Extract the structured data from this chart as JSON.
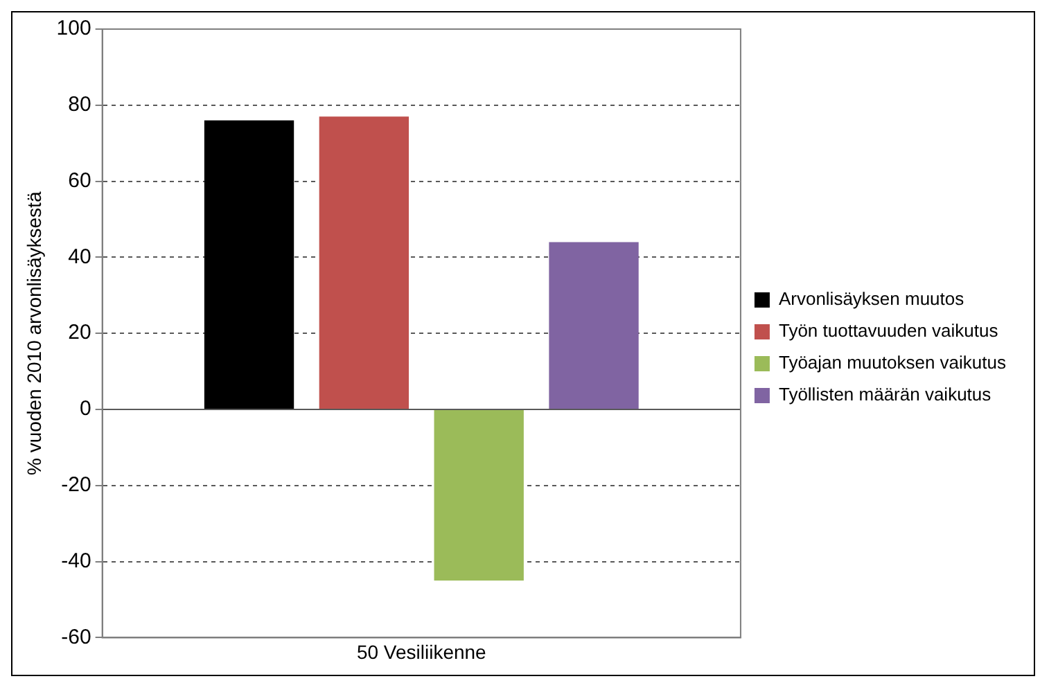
{
  "chart_data": {
    "type": "bar",
    "ylabel": "% vuoden 2010 arvonlisäyksestä",
    "categories": [
      "50 Vesiliikenne"
    ],
    "series": [
      {
        "name": "Arvonlisäyksen muutos",
        "color": "#000000",
        "values": [
          76
        ]
      },
      {
        "name": "Työn tuottavuuden vaikutus",
        "color": "#c0504d",
        "values": [
          77
        ]
      },
      {
        "name": "Työajan muutoksen vaikutus",
        "color": "#9bbb59",
        "values": [
          -45
        ]
      },
      {
        "name": "Työllisten määrän vaikutus",
        "color": "#8064a2",
        "values": [
          44
        ]
      }
    ],
    "ylim": [
      -60,
      100
    ],
    "yticks": [
      -60,
      -40,
      -20,
      0,
      20,
      40,
      60,
      80,
      100
    ],
    "grid": "y",
    "legend": "right"
  }
}
